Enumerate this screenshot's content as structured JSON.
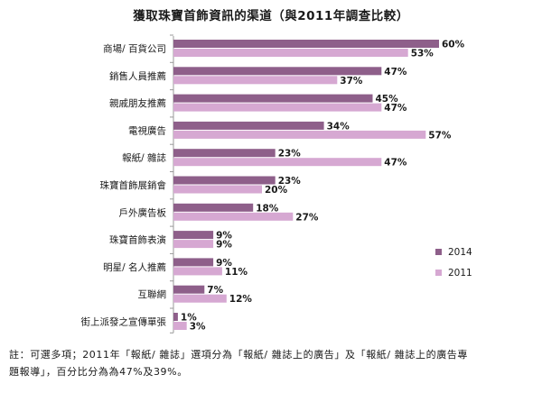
{
  "chart_data": {
    "type": "bar",
    "orientation": "horizontal",
    "title": "獲取珠寶首飾資訊的渠道（與2011年調查比較）",
    "xlabel": "",
    "ylabel": "",
    "xlim": [
      0,
      60
    ],
    "value_suffix": "%",
    "legend_position": "right",
    "categories": [
      "商場/ 百貨公司",
      "銷售人員推薦",
      "親戚朋友推薦",
      "電視廣告",
      "報紙/ 雜誌",
      "珠寶首飾展銷會",
      "戶外廣告板",
      "珠寶首飾表演",
      "明星/ 名人推薦",
      "互聯網",
      "街上派發之宣傳單張"
    ],
    "series": [
      {
        "name": "2014",
        "color": "#8e5f8a",
        "values": [
          60,
          47,
          45,
          34,
          23,
          23,
          18,
          9,
          9,
          7,
          1
        ]
      },
      {
        "name": "2011",
        "color": "#d6a8d2",
        "values": [
          53,
          37,
          47,
          57,
          47,
          20,
          27,
          9,
          11,
          12,
          3
        ]
      }
    ]
  },
  "note": {
    "line1": "註：可選多項；2011年「報紙/ 雜誌」選項分為「報紙/ 雜誌上的廣告」及「報紙/ 雜誌上的廣告專",
    "line2": "題報導」，百分比分為為47%及39%。"
  }
}
